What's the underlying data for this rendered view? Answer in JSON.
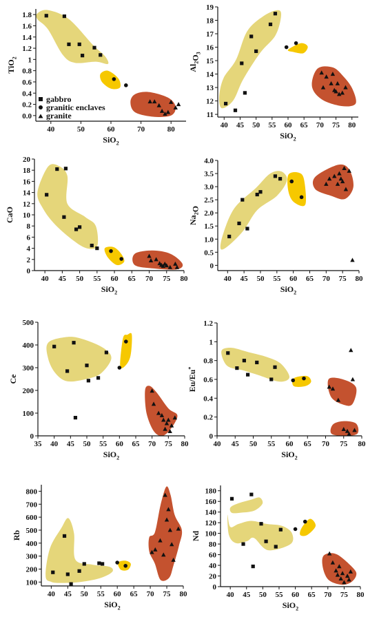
{
  "colors": {
    "gabbro_field": "#e5d67a",
    "enclave_field": "#f6c800",
    "granite_field": "#c4522f",
    "marker": "#111111"
  },
  "legend": {
    "gabbro": "gabbro",
    "enclaves": "granitic enclaves",
    "granite": "granite"
  },
  "chart_data": [
    {
      "type": "scatter",
      "id": "tio2",
      "title": "",
      "xlabel": "SiO2",
      "ylabel": "TiO2",
      "xlim": [
        35,
        85
      ],
      "ylim": [
        -0.1,
        1.9
      ],
      "xticks": [
        40,
        50,
        60,
        70,
        80
      ],
      "yticks": [
        0.0,
        0.2,
        0.4,
        0.6,
        0.8,
        1.0,
        1.2,
        1.4,
        1.6,
        1.8
      ],
      "yticklabels": [
        "0.0",
        "0.2",
        "0.4",
        "0.6",
        "0.8",
        "1",
        "1.2",
        "1.4",
        "1.6",
        "1.8"
      ],
      "legend": "left",
      "series": [
        {
          "name": "gabbro",
          "marker": "square",
          "points": [
            [
              38.5,
              1.78
            ],
            [
              44.5,
              1.77
            ],
            [
              46,
              1.27
            ],
            [
              49.5,
              1.27
            ],
            [
              50.5,
              1.07
            ],
            [
              54.5,
              1.21
            ],
            [
              56.5,
              1.08
            ]
          ]
        },
        {
          "name": "granitic enclaves",
          "marker": "circle",
          "points": [
            [
              61,
              0.65
            ],
            [
              65,
              0.54
            ]
          ]
        },
        {
          "name": "granite",
          "marker": "triangle",
          "points": [
            [
              73,
              0.25
            ],
            [
              74.5,
              0.25
            ],
            [
              76,
              0.18
            ],
            [
              77,
              0.08
            ],
            [
              78,
              0.03
            ],
            [
              79,
              0.06
            ],
            [
              80,
              0.24
            ],
            [
              81.5,
              0.14
            ],
            [
              82.5,
              0.2
            ]
          ]
        }
      ]
    },
    {
      "type": "scatter",
      "id": "al2o3",
      "title": "",
      "xlabel": "SiO2",
      "ylabel": "Al2O3",
      "xlim": [
        38,
        82
      ],
      "ylim": [
        10.8,
        19
      ],
      "xticks": [
        40,
        45,
        50,
        55,
        60,
        65,
        70,
        75,
        80
      ],
      "yticks": [
        11,
        12,
        13,
        14,
        15,
        16,
        17,
        18,
        19
      ],
      "series": [
        {
          "name": "gabbro",
          "marker": "square",
          "points": [
            [
              40.5,
              11.8
            ],
            [
              43.5,
              11.3
            ],
            [
              45.5,
              14.8
            ],
            [
              46.5,
              12.6
            ],
            [
              48.5,
              16.8
            ],
            [
              50,
              15.7
            ],
            [
              54.5,
              17.7
            ],
            [
              56,
              18.5
            ]
          ]
        },
        {
          "name": "granitic enclaves",
          "marker": "circle",
          "points": [
            [
              59.5,
              16
            ],
            [
              62.5,
              16.3
            ]
          ]
        },
        {
          "name": "granite",
          "marker": "triangle",
          "points": [
            [
              70.5,
              14.1
            ],
            [
              71,
              13
            ],
            [
              72,
              13.8
            ],
            [
              73.5,
              13.3
            ],
            [
              74,
              14
            ],
            [
              74.5,
              12.8
            ],
            [
              75,
              12.7
            ],
            [
              75.5,
              13.3
            ],
            [
              76,
              12.5
            ],
            [
              77,
              12.6
            ],
            [
              78,
              13
            ]
          ]
        }
      ]
    },
    {
      "type": "scatter",
      "id": "cao",
      "title": "",
      "xlabel": "SiO2",
      "ylabel": "CaO",
      "xlim": [
        37,
        80
      ],
      "ylim": [
        0,
        20
      ],
      "xticks": [
        40,
        45,
        50,
        55,
        60,
        65,
        70,
        75,
        80
      ],
      "yticks": [
        0,
        2,
        4,
        6,
        8,
        10,
        12,
        14,
        16,
        18,
        20
      ],
      "series": [
        {
          "name": "gabbro",
          "marker": "square",
          "points": [
            [
              40.5,
              13.6
            ],
            [
              43.5,
              18.2
            ],
            [
              45.5,
              9.6
            ],
            [
              46,
              18.3
            ],
            [
              49,
              7.4
            ],
            [
              50,
              7.8
            ],
            [
              53.5,
              4.5
            ],
            [
              55,
              4
            ]
          ]
        },
        {
          "name": "granitic enclaves",
          "marker": "circle",
          "points": [
            [
              59,
              3.5
            ],
            [
              62,
              2.1
            ]
          ]
        },
        {
          "name": "granite",
          "marker": "triangle",
          "points": [
            [
              70,
              2.6
            ],
            [
              70.5,
              1.8
            ],
            [
              72,
              2
            ],
            [
              73,
              1.3
            ],
            [
              73.5,
              1
            ],
            [
              74,
              0.8
            ],
            [
              74.5,
              1.2
            ],
            [
              75,
              0.9
            ],
            [
              76,
              0.6
            ],
            [
              77.5,
              1.2
            ],
            [
              78,
              0.6
            ]
          ]
        }
      ]
    },
    {
      "type": "scatter",
      "id": "na2o",
      "title": "",
      "xlabel": "SiO2",
      "ylabel": "Na2O",
      "xlim": [
        37,
        80
      ],
      "ylim": [
        -0.2,
        4.0
      ],
      "xticks": [
        40,
        45,
        50,
        55,
        60,
        65,
        70,
        75,
        80
      ],
      "yticks": [
        0.0,
        0.5,
        1.0,
        1.5,
        2.0,
        2.5,
        3.0,
        3.5,
        4.0
      ],
      "yticklabels": [
        "0",
        "0.5",
        "1.0",
        "1.5",
        "2.0",
        "2.5",
        "3.0",
        "3.5",
        "4.0"
      ],
      "series": [
        {
          "name": "gabbro",
          "marker": "square",
          "points": [
            [
              40.5,
              1.1
            ],
            [
              43.5,
              1.6
            ],
            [
              44.5,
              2.5
            ],
            [
              46,
              1.4
            ],
            [
              49,
              2.7
            ],
            [
              50,
              2.8
            ],
            [
              54.5,
              3.4
            ],
            [
              56,
              3.3
            ]
          ]
        },
        {
          "name": "granitic enclaves",
          "marker": "circle",
          "points": [
            [
              59.5,
              3.2
            ],
            [
              62.5,
              2.6
            ]
          ]
        },
        {
          "name": "granite",
          "marker": "triangle",
          "points": [
            [
              70,
              3.1
            ],
            [
              71,
              3.3
            ],
            [
              72.5,
              3.4
            ],
            [
              73.5,
              3.1
            ],
            [
              74,
              3.5
            ],
            [
              74.5,
              3.3
            ],
            [
              75,
              3.2
            ],
            [
              75.5,
              3.7
            ],
            [
              76,
              2.9
            ],
            [
              77,
              3.6
            ],
            [
              78,
              0.2
            ]
          ]
        }
      ]
    },
    {
      "type": "scatter",
      "id": "ce",
      "title": "",
      "xlabel": "SiO2",
      "ylabel": "Ce",
      "xlim": [
        35,
        80
      ],
      "ylim": [
        0,
        500
      ],
      "xticks": [
        35,
        40,
        45,
        50,
        55,
        60,
        65,
        70,
        75,
        80
      ],
      "yticks": [
        0,
        100,
        200,
        300,
        400,
        500
      ],
      "series": [
        {
          "name": "gabbro",
          "marker": "square",
          "points": [
            [
              40,
              393
            ],
            [
              44,
              285
            ],
            [
              46,
              410
            ],
            [
              46.5,
              80
            ],
            [
              50,
              310
            ],
            [
              50.5,
              243
            ],
            [
              53.5,
              255
            ],
            [
              56,
              367
            ]
          ]
        },
        {
          "name": "granitic enclaves",
          "marker": "circle",
          "points": [
            [
              60,
              300
            ],
            [
              62,
              415
            ]
          ]
        },
        {
          "name": "granite",
          "marker": "triangle",
          "points": [
            [
              70,
              198
            ],
            [
              70.5,
              140
            ],
            [
              72,
              100
            ],
            [
              73,
              90
            ],
            [
              73.5,
              70
            ],
            [
              74,
              30
            ],
            [
              74.5,
              55
            ],
            [
              75,
              70
            ],
            [
              75.5,
              20
            ],
            [
              76,
              45
            ],
            [
              77,
              80
            ]
          ]
        }
      ]
    },
    {
      "type": "scatter",
      "id": "eu",
      "title": "",
      "xlabel": "SiO2",
      "ylabel": "Eu/Eu*",
      "xlim": [
        40,
        80
      ],
      "ylim": [
        0,
        1.2
      ],
      "xticks": [
        40,
        45,
        50,
        55,
        60,
        65,
        70,
        75,
        80
      ],
      "yticks": [
        0,
        0.2,
        0.4,
        0.6,
        0.8,
        1.0,
        1.2
      ],
      "yticklabels": [
        "0",
        "0.2",
        "0.4",
        "0.6",
        "0.8",
        "1",
        "1.2"
      ],
      "series": [
        {
          "name": "gabbro",
          "marker": "square",
          "points": [
            [
              43,
              0.88
            ],
            [
              45.5,
              0.72
            ],
            [
              47.5,
              0.8
            ],
            [
              48.5,
              0.65
            ],
            [
              51,
              0.78
            ],
            [
              55,
              0.6
            ],
            [
              56,
              0.73
            ]
          ]
        },
        {
          "name": "granitic enclaves",
          "marker": "circle",
          "points": [
            [
              61,
              0.59
            ],
            [
              64,
              0.61
            ]
          ]
        },
        {
          "name": "granite",
          "marker": "triangle",
          "points": [
            [
              71,
              0.52
            ],
            [
              72,
              0.5
            ],
            [
              73.5,
              0.38
            ],
            [
              75,
              0.07
            ],
            [
              76,
              0.05
            ],
            [
              76.5,
              0.02
            ],
            [
              77,
              0.91
            ],
            [
              77.5,
              0.6
            ],
            [
              78,
              0.06
            ]
          ]
        }
      ]
    },
    {
      "type": "scatter",
      "id": "rb",
      "title": "",
      "xlabel": "SiO2",
      "ylabel": "Rb",
      "xlim": [
        37,
        80
      ],
      "ylim": [
        70,
        850
      ],
      "xticks": [
        40,
        45,
        50,
        55,
        60,
        65,
        70,
        75,
        80
      ],
      "yticks": [
        100,
        200,
        300,
        400,
        500,
        600,
        700,
        800
      ],
      "series": [
        {
          "name": "gabbro",
          "marker": "square",
          "points": [
            [
              40.5,
              175
            ],
            [
              44,
              455
            ],
            [
              45,
              160
            ],
            [
              46,
              85
            ],
            [
              48.5,
              185
            ],
            [
              50,
              240
            ],
            [
              54.5,
              245
            ],
            [
              55.5,
              240
            ]
          ]
        },
        {
          "name": "granitic enclaves",
          "marker": "circle",
          "points": [
            [
              60,
              250
            ],
            [
              62.5,
              225
            ]
          ]
        },
        {
          "name": "granite",
          "marker": "triangle",
          "points": [
            [
              70.5,
              330
            ],
            [
              71.5,
              350
            ],
            [
              73,
              420
            ],
            [
              74,
              310
            ],
            [
              74.5,
              770
            ],
            [
              75,
              580
            ],
            [
              75.5,
              660
            ],
            [
              76,
              500
            ],
            [
              76.5,
              390
            ],
            [
              77,
              270
            ],
            [
              78.5,
              510
            ]
          ]
        }
      ]
    },
    {
      "type": "scatter",
      "id": "nd",
      "title": "",
      "xlabel": "SiO2",
      "ylabel": "Nd",
      "xlim": [
        37,
        80
      ],
      "ylim": [
        0,
        190
      ],
      "xticks": [
        40,
        45,
        50,
        55,
        60,
        65,
        70,
        75,
        80
      ],
      "yticks": [
        0,
        20,
        40,
        60,
        80,
        100,
        120,
        140,
        160,
        180
      ],
      "series": [
        {
          "name": "gabbro",
          "marker": "square",
          "points": [
            [
              40.5,
              165
            ],
            [
              44,
              80
            ],
            [
              46.5,
              173
            ],
            [
              47,
              38
            ],
            [
              49.5,
              118
            ],
            [
              51,
              85
            ],
            [
              54,
              75
            ],
            [
              55.5,
              107
            ]
          ]
        },
        {
          "name": "granitic enclaves",
          "marker": "circle",
          "points": [
            [
              60,
              108
            ],
            [
              63,
              122
            ]
          ]
        },
        {
          "name": "granite",
          "marker": "triangle",
          "points": [
            [
              70.5,
              62
            ],
            [
              71.5,
              45
            ],
            [
              72.5,
              30
            ],
            [
              73,
              22
            ],
            [
              73.5,
              38
            ],
            [
              74,
              15
            ],
            [
              74.5,
              25
            ],
            [
              75,
              8
            ],
            [
              76,
              20
            ],
            [
              76.5,
              13
            ],
            [
              77,
              28
            ]
          ]
        }
      ]
    }
  ]
}
